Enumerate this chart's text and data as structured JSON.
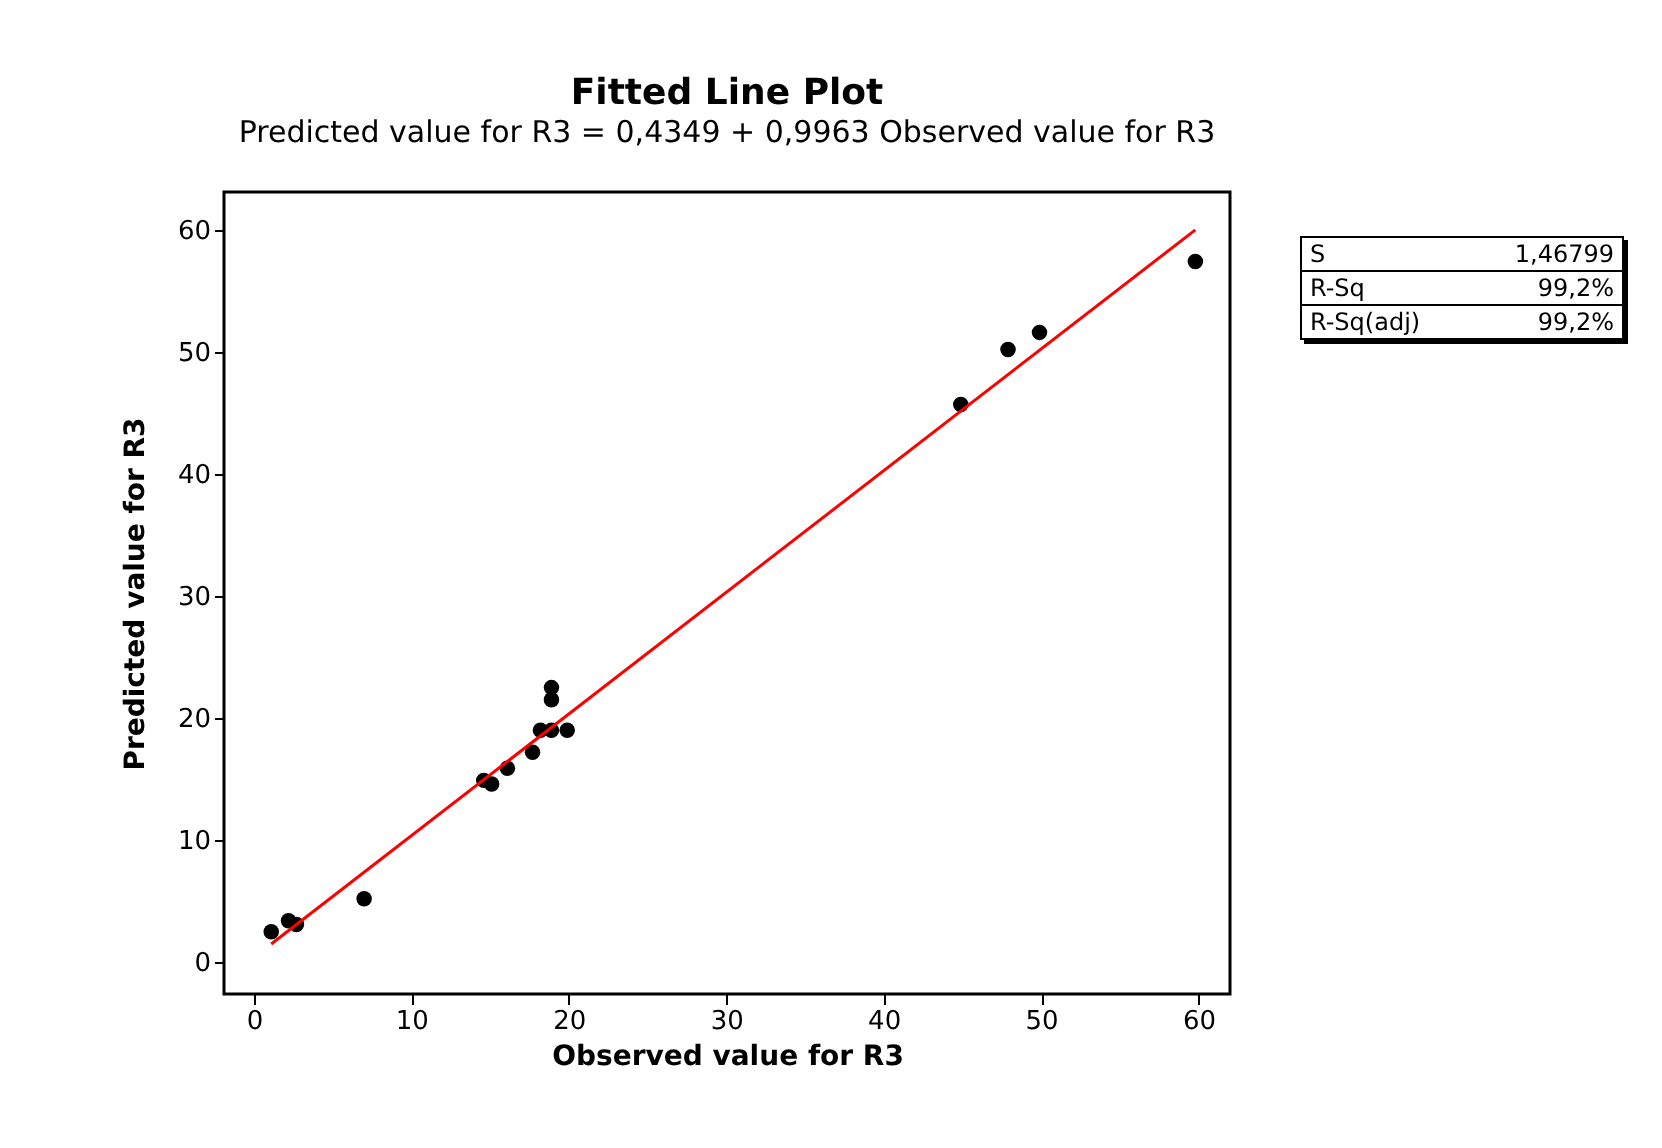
{
  "chart_data": {
    "type": "scatter",
    "title": "Fitted Line Plot",
    "subtitle": "Predicted value for R3 =  0,4349 + 0,9963 Observed value for R3",
    "xlabel": "Observed value for R3",
    "ylabel": "Predicted value for R3",
    "xlim": [
      -1.9,
      62
    ],
    "xticks": [
      0,
      10,
      20,
      30,
      40,
      50,
      60
    ],
    "ylim": [
      -2.6,
      63.1
    ],
    "yticks": [
      0,
      10,
      20,
      30,
      40,
      50,
      60
    ],
    "grid": false,
    "marker": "circle",
    "x": [
      1.1,
      2.2,
      2.7,
      7.0,
      14.6,
      15.1,
      16.1,
      17.7,
      18.2,
      18.9,
      18.9,
      18.9,
      19.9,
      44.9,
      47.9,
      49.9,
      59.8
    ],
    "series": [
      {
        "color": "#000000",
        "values": [
          2.5,
          3.4,
          3.1,
          5.2,
          14.9,
          14.6,
          15.9,
          17.2,
          19.0,
          22.5,
          21.5,
          19.0,
          19.0,
          45.7,
          50.2,
          51.6,
          57.4
        ]
      },
      {
        "type": "line",
        "color": "#ff0000",
        "marker": "none",
        "line_style": "solid",
        "x": [
          1.1,
          59.8
        ],
        "values": [
          1.5,
          60.0
        ]
      }
    ],
    "annotations": [
      "S 1,46799",
      "R-Sq 99,2%",
      "R-Sq(adj) 99,2%"
    ]
  }
}
